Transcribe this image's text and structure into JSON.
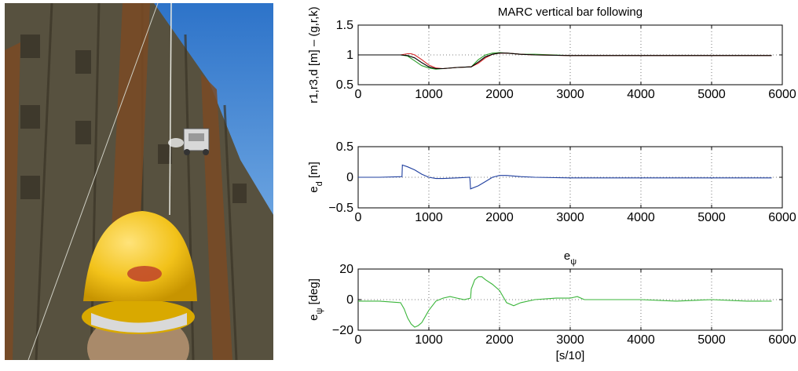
{
  "figure": {
    "photo_description_icon": "robot-climbing-steel-hull-photo"
  },
  "chart_data": [
    {
      "type": "line",
      "title": "MARC vertical bar following",
      "ylabel": "r1,r3,d [m] – (g,r,k)",
      "xlabel": "",
      "xlim": [
        0,
        6000
      ],
      "ylim": [
        0.5,
        1.5
      ],
      "xticks": [
        "0",
        "1000",
        "2000",
        "3000",
        "4000",
        "5000",
        "6000"
      ],
      "yticks": [
        "0.5",
        "1",
        "1.5"
      ],
      "grid": true,
      "series": [
        {
          "color": "#2ca02c",
          "x": [
            0,
            600,
            700,
            800,
            900,
            1000,
            1100,
            1200,
            1400,
            1600,
            1700,
            1800,
            1900,
            2000,
            2100,
            2300,
            2500,
            3000,
            4000,
            5000,
            5850
          ],
          "y": [
            1.0,
            1.0,
            0.98,
            0.9,
            0.82,
            0.78,
            0.76,
            0.77,
            0.79,
            0.8,
            0.92,
            1.0,
            1.03,
            1.04,
            1.03,
            1.01,
            1.01,
            0.99,
            0.99,
            0.99,
            0.99
          ]
        },
        {
          "color": "#d62728",
          "x": [
            0,
            600,
            700,
            750,
            800,
            900,
            1000,
            1100,
            1200,
            1400,
            1600,
            1700,
            1800,
            1900,
            2000,
            2100,
            2300,
            2500,
            3000,
            4000,
            5000,
            5850
          ],
          "y": [
            1.0,
            1.0,
            1.02,
            1.02,
            1.0,
            0.92,
            0.83,
            0.78,
            0.77,
            0.79,
            0.8,
            0.86,
            0.95,
            1.01,
            1.03,
            1.03,
            1.01,
            1.0,
            0.99,
            0.99,
            0.99,
            0.99
          ]
        },
        {
          "color": "#000000",
          "x": [
            0,
            600,
            700,
            800,
            900,
            1000,
            1100,
            1200,
            1400,
            1600,
            1700,
            1800,
            1900,
            2000,
            2100,
            2300,
            2500,
            3000,
            4000,
            5000,
            5850
          ],
          "y": [
            1.0,
            1.0,
            0.99,
            0.95,
            0.87,
            0.8,
            0.77,
            0.77,
            0.79,
            0.8,
            0.88,
            0.97,
            1.01,
            1.03,
            1.03,
            1.01,
            1.0,
            0.99,
            0.99,
            0.99,
            0.99
          ]
        }
      ]
    },
    {
      "type": "line",
      "title": "",
      "ylabel": "e_d [m]",
      "xlabel": "",
      "xlim": [
        0,
        6000
      ],
      "ylim": [
        -0.5,
        0.5
      ],
      "xticks": [
        "0",
        "1000",
        "2000",
        "3000",
        "4000",
        "5000",
        "6000"
      ],
      "yticks": [
        "−0.5",
        "0",
        "0.5"
      ],
      "grid": true,
      "series": [
        {
          "color": "#1f3f9f",
          "x": [
            0,
            300,
            620,
            625,
            700,
            800,
            900,
            1000,
            1100,
            1200,
            1400,
            1580,
            1590,
            1700,
            1800,
            1900,
            2000,
            2100,
            2300,
            2500,
            3000,
            4000,
            5000,
            5850
          ],
          "y": [
            0.0,
            0.0,
            0.01,
            0.2,
            0.17,
            0.12,
            0.05,
            0.0,
            -0.02,
            -0.02,
            -0.01,
            0.0,
            -0.19,
            -0.14,
            -0.07,
            0.0,
            0.03,
            0.03,
            0.01,
            0.0,
            -0.01,
            -0.01,
            -0.01,
            -0.01
          ]
        }
      ]
    },
    {
      "type": "line",
      "title": "e_ψ",
      "ylabel": "e_ψ [deg]",
      "xlabel": "[s/10]",
      "xlim": [
        0,
        6000
      ],
      "ylim": [
        -20,
        20
      ],
      "xticks": [
        "0",
        "1000",
        "2000",
        "3000",
        "4000",
        "5000",
        "6000"
      ],
      "yticks": [
        "−20",
        "0",
        "20"
      ],
      "grid": true,
      "series": [
        {
          "color": "#3ab53a",
          "x": [
            0,
            300,
            600,
            650,
            700,
            750,
            800,
            850,
            900,
            1000,
            1100,
            1200,
            1300,
            1400,
            1500,
            1590,
            1600,
            1650,
            1700,
            1750,
            1800,
            1900,
            2000,
            2050,
            2100,
            2200,
            2300,
            2500,
            2800,
            3000,
            3100,
            3200,
            3500,
            4000,
            4500,
            5000,
            5500,
            5850
          ],
          "y": [
            -1,
            -1,
            -2,
            -6,
            -12,
            -16,
            -18,
            -17,
            -15,
            -7,
            -1,
            1,
            2,
            1,
            0,
            1,
            7,
            13,
            15,
            15,
            13,
            10,
            6,
            2,
            -2,
            -4,
            -2,
            0,
            1,
            1,
            2,
            0,
            0,
            0,
            -1,
            0,
            -1,
            -1
          ]
        }
      ]
    }
  ]
}
